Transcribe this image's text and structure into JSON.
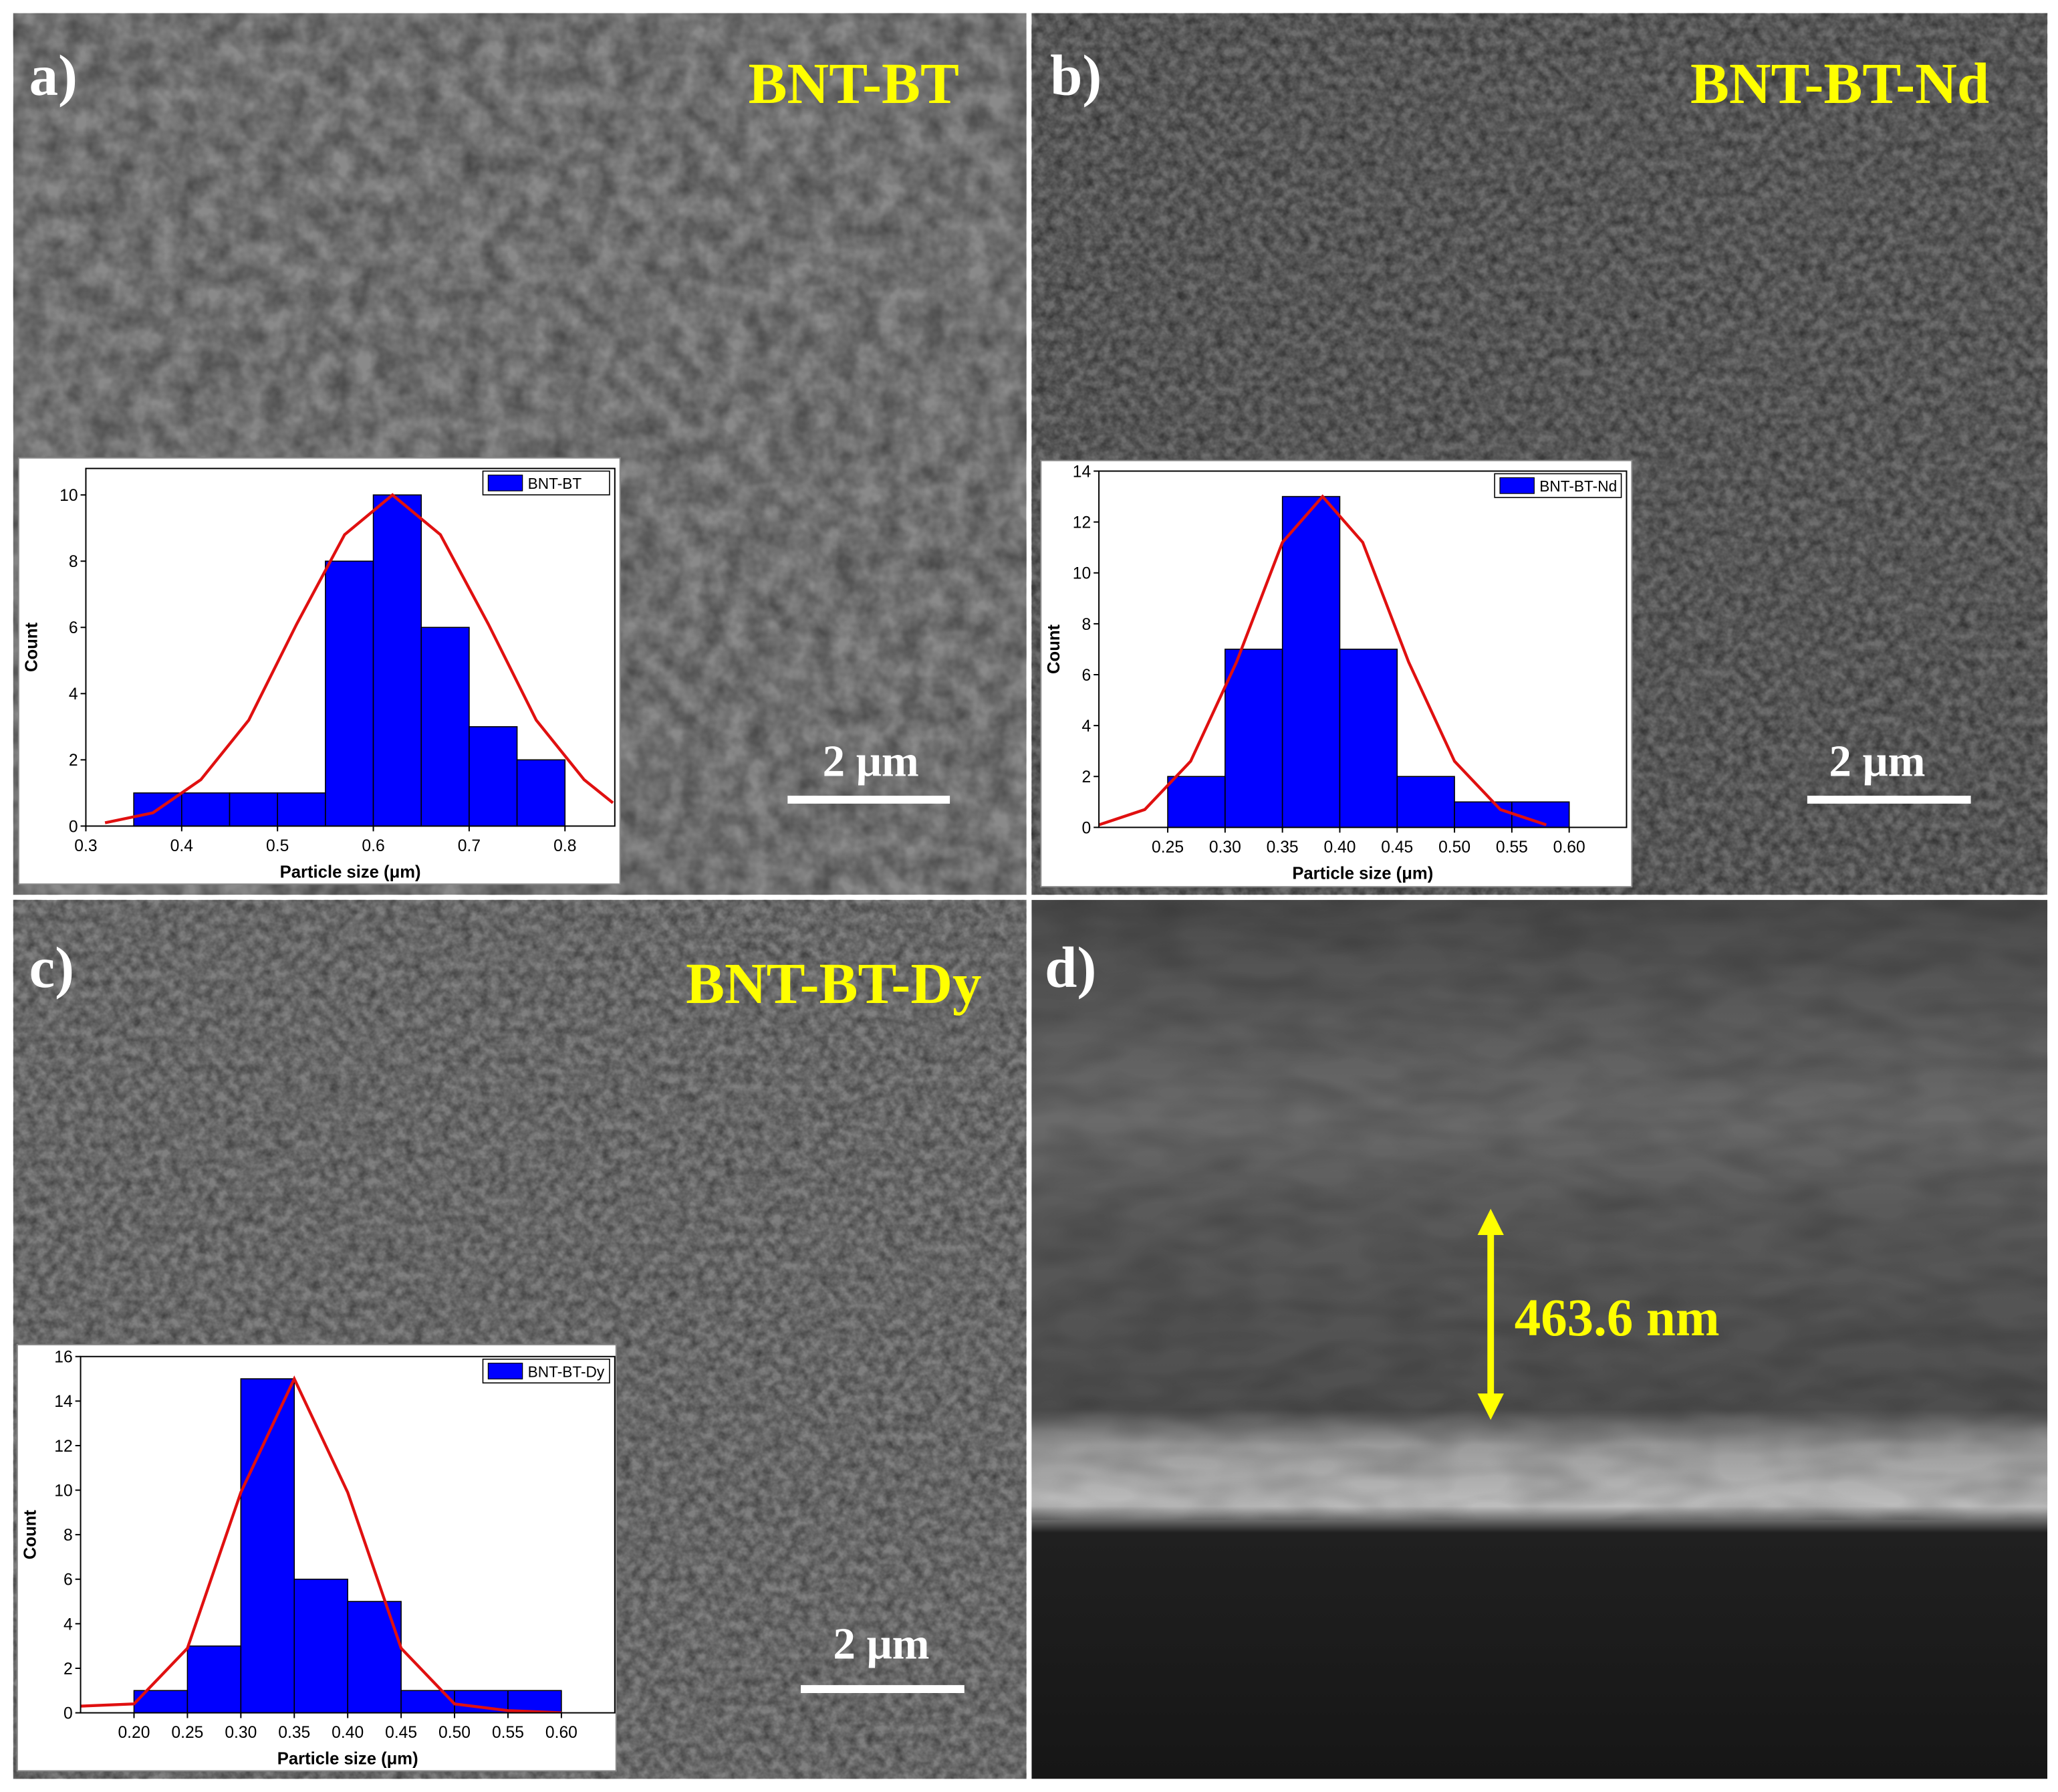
{
  "panels": [
    {
      "label": "a)",
      "title": "BNT-BT",
      "scale_bar": "2 μm"
    },
    {
      "label": "b)",
      "title": "BNT-BT-Nd",
      "scale_bar": "2 μm"
    },
    {
      "label": "c)",
      "title": "BNT-BT-Dy",
      "scale_bar": "2 μm"
    },
    {
      "label": "d)",
      "annotation": "463.6 nm"
    }
  ],
  "chart_data": [
    {
      "type": "histogram",
      "xlabel": "Particle size (μm)",
      "ylabel": "Count",
      "bins": [
        0.35,
        0.4,
        0.45,
        0.5,
        0.55,
        0.6,
        0.65,
        0.7,
        0.75,
        0.8
      ],
      "series": [
        {
          "name": "BNT-BT",
          "color": "#0000ff",
          "values": [
            1,
            1,
            1,
            1,
            8,
            10,
            6,
            3,
            2
          ]
        }
      ],
      "fit": {
        "color": "#e01010",
        "x": [
          0.32,
          0.37,
          0.42,
          0.47,
          0.52,
          0.57,
          0.62,
          0.67,
          0.72,
          0.77,
          0.82,
          0.85
        ],
        "values": [
          0.1,
          0.4,
          1.4,
          3.2,
          6.1,
          8.8,
          10,
          8.8,
          6.1,
          3.2,
          1.4,
          0.7
        ]
      },
      "xlim": [
        0.3,
        0.852
      ],
      "ylim": [
        0,
        10.8
      ],
      "xticks": [
        0.3,
        0.4,
        0.5,
        0.6,
        0.7,
        0.8
      ],
      "yticks": [
        0,
        2,
        4,
        6,
        8,
        10
      ],
      "legend": "top right"
    },
    {
      "type": "histogram",
      "xlabel": "Particle size (μm)",
      "ylabel": "Count",
      "bins": [
        0.25,
        0.3,
        0.35,
        0.4,
        0.45,
        0.5,
        0.55,
        0.6
      ],
      "series": [
        {
          "name": "BNT-BT-Nd",
          "color": "#0000ff",
          "values": [
            2,
            7,
            13,
            7,
            2,
            1,
            1
          ]
        }
      ],
      "fit": {
        "color": "#e01010",
        "x": [
          0.19,
          0.23,
          0.27,
          0.31,
          0.35,
          0.385,
          0.42,
          0.46,
          0.5,
          0.54,
          0.58
        ],
        "values": [
          0.1,
          0.7,
          2.6,
          6.5,
          11.2,
          13,
          11.2,
          6.5,
          2.6,
          0.7,
          0.1
        ]
      },
      "xlim": [
        0.19,
        0.65
      ],
      "ylim": [
        0,
        14
      ],
      "xticks": [
        0.25,
        {
          "value": 0.3,
          "label": "0.30"
        },
        0.35,
        {
          "value": 0.4,
          "label": "0.40"
        },
        0.45,
        {
          "value": 0.5,
          "label": "0.50"
        },
        0.55,
        {
          "value": 0.6,
          "label": "0.60"
        }
      ],
      "yticks": [
        0,
        2,
        4,
        6,
        8,
        10,
        12,
        14
      ],
      "legend": "top right"
    },
    {
      "type": "histogram",
      "xlabel": "Particle size (μm)",
      "ylabel": "Count",
      "bins": [
        0.2,
        0.25,
        0.3,
        0.35,
        0.4,
        0.45,
        0.5,
        0.55,
        0.6
      ],
      "series": [
        {
          "name": "BNT-BT-Dy",
          "color": "#0000ff",
          "values": [
            1,
            3,
            15,
            6,
            5,
            1,
            1,
            1
          ]
        }
      ],
      "fit": {
        "color": "#e01010",
        "x": [
          0.15,
          0.2,
          0.25,
          0.3,
          0.35,
          0.4,
          0.45,
          0.5,
          0.55,
          0.6
        ],
        "values": [
          0.3,
          0.4,
          2.9,
          9.9,
          15,
          9.9,
          2.9,
          0.4,
          0.1,
          0
        ]
      },
      "xlim": [
        0.15,
        0.65
      ],
      "ylim": [
        0,
        16
      ],
      "xticks": [
        {
          "value": 0.2,
          "label": "0.20"
        },
        0.25,
        {
          "value": 0.3,
          "label": "0.30"
        },
        0.35,
        {
          "value": 0.4,
          "label": "0.40"
        },
        0.45,
        {
          "value": 0.5,
          "label": "0.50"
        },
        0.55,
        {
          "value": 0.6,
          "label": "0.60"
        }
      ],
      "yticks": [
        0,
        2,
        4,
        6,
        8,
        10,
        12,
        14,
        16
      ],
      "legend": "top right"
    }
  ]
}
